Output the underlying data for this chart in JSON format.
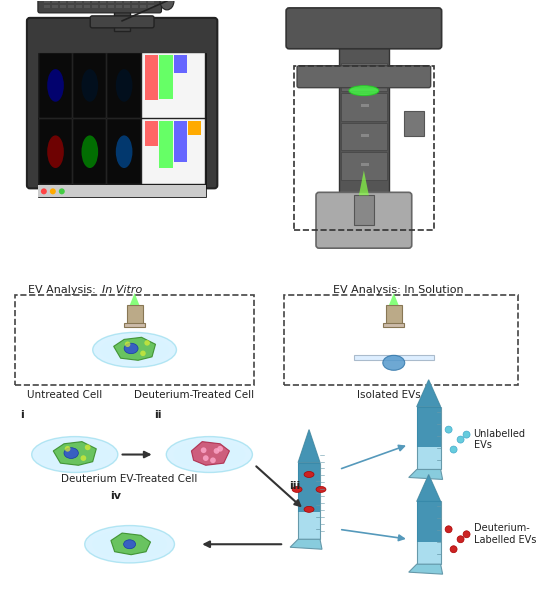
{
  "bg_color": "#ffffff",
  "label_ev_vitro": "EV Analysis: ",
  "label_ev_vitro_italic": "In Vitro",
  "label_ev_solution": "EV Analysis: In Solution",
  "label_untreated": "Untreated Cell",
  "label_deuterium_treated": "Deuterium-Treated Cell",
  "label_deuterium_ev": "Deuterium EV-Treated Cell",
  "label_isolated": "Isolated EVs",
  "label_unlabelled": "Unlabelled\nEVs",
  "label_deuterium_labelled": "Deuterium-\nLabelled EVs",
  "label_i": "i",
  "label_ii": "ii",
  "label_iii": "iii",
  "label_iv": "iv",
  "cell_bg_color": "#b8e8f0",
  "cell_bg_outer": "#d0f0f8",
  "tube_blue": "#5ab4d4",
  "tube_light": "#a8dff0",
  "tube_cap": "#88ccee",
  "dot_cyan": "#66ccdd",
  "dot_red": "#cc2222",
  "arrow_color": "#333333",
  "dashed_box_color": "#333333",
  "monitor_bg": "#3a3a3a",
  "monitor_screen_bg": "#cccccc",
  "keyboard_color": "#444444",
  "microscope_color": "#555555",
  "red_drop": "#cc2222",
  "green_laser": "#44ff44"
}
